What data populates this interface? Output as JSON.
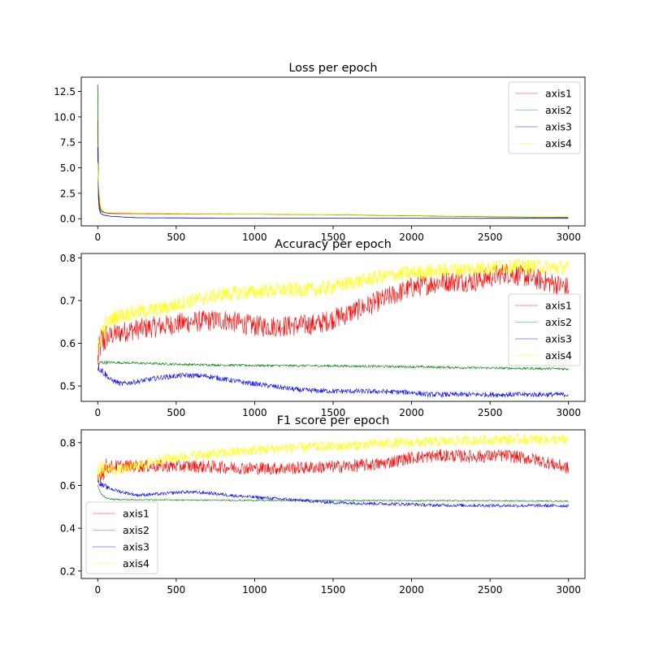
{
  "chart_data": [
    {
      "type": "line",
      "title": "Loss per epoch",
      "xlabel": "",
      "ylabel": "",
      "xlim": [
        -105,
        3105
      ],
      "ylim": [
        -0.7,
        13.9
      ],
      "xticks": [
        0,
        500,
        1000,
        1500,
        2000,
        2500,
        3000
      ],
      "xtick_labels": [
        "0",
        "500",
        "1000",
        "1500",
        "2000",
        "2500",
        "3000"
      ],
      "yticks": [
        0.0,
        2.5,
        5.0,
        7.5,
        10.0,
        12.5
      ],
      "ytick_labels": [
        "0.0",
        "2.5",
        "5.0",
        "7.5",
        "10.0",
        "12.5"
      ],
      "legend_location": "upper right",
      "series": [
        {
          "name": "axis1",
          "color": "#ff0000",
          "x": [
            0,
            5,
            10,
            20,
            40,
            60,
            100,
            200,
            500,
            1000,
            1500,
            2000,
            2500,
            3000
          ],
          "y": [
            9.6,
            3.5,
            1.6,
            0.9,
            0.6,
            0.55,
            0.5,
            0.5,
            0.48,
            0.45,
            0.42,
            0.3,
            0.2,
            0.15
          ]
        },
        {
          "name": "axis2",
          "color": "#008000",
          "x": [
            0,
            3,
            6,
            10,
            20,
            40,
            60,
            100,
            200,
            500,
            1000,
            1500,
            2000,
            2500,
            3000
          ],
          "y": [
            13.2,
            5.0,
            2.5,
            1.2,
            0.7,
            0.62,
            0.58,
            0.56,
            0.55,
            0.52,
            0.45,
            0.4,
            0.3,
            0.2,
            0.12
          ]
        },
        {
          "name": "axis3",
          "color": "#0000ff",
          "x": [
            0,
            5,
            10,
            20,
            40,
            80,
            150,
            250,
            500,
            1000,
            2000,
            3000
          ],
          "y": [
            7.0,
            2.0,
            0.9,
            0.5,
            0.35,
            0.25,
            0.18,
            0.1,
            0.08,
            0.06,
            0.05,
            0.04
          ]
        },
        {
          "name": "axis4",
          "color": "#ffff00",
          "x": [
            0,
            5,
            10,
            20,
            40,
            60,
            100,
            200,
            500,
            1000,
            1500,
            2000,
            2500,
            3000
          ],
          "y": [
            5.5,
            3.8,
            2.5,
            1.2,
            0.7,
            0.62,
            0.58,
            0.56,
            0.52,
            0.46,
            0.43,
            0.33,
            0.24,
            0.18
          ]
        }
      ]
    },
    {
      "type": "line",
      "title": "Accuracy per epoch",
      "xlabel": "",
      "ylabel": "",
      "xlim": [
        -105,
        3105
      ],
      "ylim": [
        0.464,
        0.81
      ],
      "xticks": [
        0,
        500,
        1000,
        1500,
        2000,
        2500,
        3000
      ],
      "xtick_labels": [
        "0",
        "500",
        "1000",
        "1500",
        "2000",
        "2500",
        "3000"
      ],
      "yticks": [
        0.5,
        0.6,
        0.7,
        0.8
      ],
      "ytick_labels": [
        "0.5",
        "0.6",
        "0.7",
        "0.8"
      ],
      "legend_location": "center right",
      "series": [
        {
          "name": "axis1",
          "color": "#ff0000",
          "noise": 0.025,
          "x": [
            0,
            20,
            50,
            100,
            200,
            400,
            600,
            800,
            1000,
            1200,
            1400,
            1600,
            1800,
            2000,
            2200,
            2400,
            2600,
            2800,
            3000
          ],
          "y": [
            0.56,
            0.6,
            0.61,
            0.62,
            0.63,
            0.64,
            0.65,
            0.655,
            0.64,
            0.64,
            0.645,
            0.67,
            0.7,
            0.73,
            0.745,
            0.745,
            0.765,
            0.75,
            0.73
          ]
        },
        {
          "name": "axis2",
          "color": "#008000",
          "noise": 0.003,
          "x": [
            0,
            20,
            100,
            300,
            600,
            1000,
            1500,
            2000,
            2500,
            3000
          ],
          "y": [
            0.55,
            0.555,
            0.555,
            0.553,
            0.55,
            0.548,
            0.547,
            0.545,
            0.542,
            0.54
          ]
        },
        {
          "name": "axis3",
          "color": "#0000ff",
          "noise": 0.006,
          "x": [
            0,
            30,
            80,
            150,
            250,
            400,
            550,
            700,
            900,
            1100,
            1300,
            1500,
            1800,
            2000,
            2100,
            2500,
            3000
          ],
          "y": [
            0.545,
            0.535,
            0.515,
            0.505,
            0.51,
            0.52,
            0.525,
            0.523,
            0.51,
            0.5,
            0.49,
            0.488,
            0.487,
            0.485,
            0.48,
            0.48,
            0.48
          ]
        },
        {
          "name": "axis4",
          "color": "#ffff00",
          "noise": 0.018,
          "x": [
            0,
            20,
            50,
            100,
            200,
            400,
            600,
            800,
            1000,
            1200,
            1400,
            1600,
            1800,
            2000,
            2200,
            2400,
            2600,
            2800,
            3000
          ],
          "y": [
            0.57,
            0.62,
            0.64,
            0.66,
            0.67,
            0.68,
            0.7,
            0.715,
            0.72,
            0.725,
            0.725,
            0.74,
            0.755,
            0.765,
            0.77,
            0.775,
            0.78,
            0.78,
            0.775
          ]
        }
      ]
    },
    {
      "type": "line",
      "title": "F1 score per epoch",
      "xlabel": "",
      "ylabel": "",
      "xlim": [
        -105,
        3105
      ],
      "ylim": [
        0.165,
        0.86
      ],
      "xticks": [
        0,
        500,
        1000,
        1500,
        2000,
        2500,
        3000
      ],
      "xtick_labels": [
        "0",
        "500",
        "1000",
        "1500",
        "2000",
        "2500",
        "3000"
      ],
      "yticks": [
        0.2,
        0.4,
        0.6,
        0.8
      ],
      "ytick_labels": [
        "0.2",
        "0.4",
        "0.6",
        "0.8"
      ],
      "legend_location": "lower left",
      "series": [
        {
          "name": "axis1",
          "color": "#ff0000",
          "noise": 0.03,
          "x": [
            0,
            20,
            50,
            100,
            200,
            400,
            600,
            800,
            1000,
            1200,
            1400,
            1600,
            1800,
            2000,
            2200,
            2400,
            2600,
            2800,
            3000
          ],
          "y": [
            0.62,
            0.66,
            0.68,
            0.69,
            0.69,
            0.69,
            0.69,
            0.685,
            0.68,
            0.68,
            0.685,
            0.69,
            0.7,
            0.73,
            0.74,
            0.735,
            0.74,
            0.72,
            0.68
          ]
        },
        {
          "name": "axis2",
          "color": "#008000",
          "noise": 0.003,
          "x": [
            0,
            20,
            60,
            100,
            200,
            500,
            1000,
            1500,
            2000,
            2500,
            3000
          ],
          "y": [
            0.6,
            0.56,
            0.54,
            0.535,
            0.533,
            0.532,
            0.53,
            0.53,
            0.529,
            0.528,
            0.527
          ]
        },
        {
          "name": "axis3",
          "color": "#0000ff",
          "noise": 0.008,
          "x": [
            0,
            30,
            80,
            150,
            250,
            400,
            550,
            700,
            900,
            1100,
            1300,
            1500,
            1800,
            2000,
            2100,
            2500,
            3000
          ],
          "y": [
            0.62,
            0.6,
            0.585,
            0.57,
            0.555,
            0.56,
            0.57,
            0.565,
            0.55,
            0.54,
            0.53,
            0.52,
            0.515,
            0.512,
            0.508,
            0.506,
            0.505
          ]
        },
        {
          "name": "axis4",
          "color": "#ffff00",
          "noise": 0.025,
          "x": [
            0,
            20,
            50,
            100,
            200,
            400,
            600,
            800,
            1000,
            1200,
            1400,
            1600,
            1800,
            2000,
            2200,
            2400,
            2600,
            2800,
            3000
          ],
          "y": [
            0.66,
            0.68,
            0.68,
            0.67,
            0.68,
            0.72,
            0.74,
            0.75,
            0.765,
            0.775,
            0.78,
            0.785,
            0.795,
            0.8,
            0.805,
            0.81,
            0.815,
            0.815,
            0.81
          ]
        }
      ]
    }
  ]
}
